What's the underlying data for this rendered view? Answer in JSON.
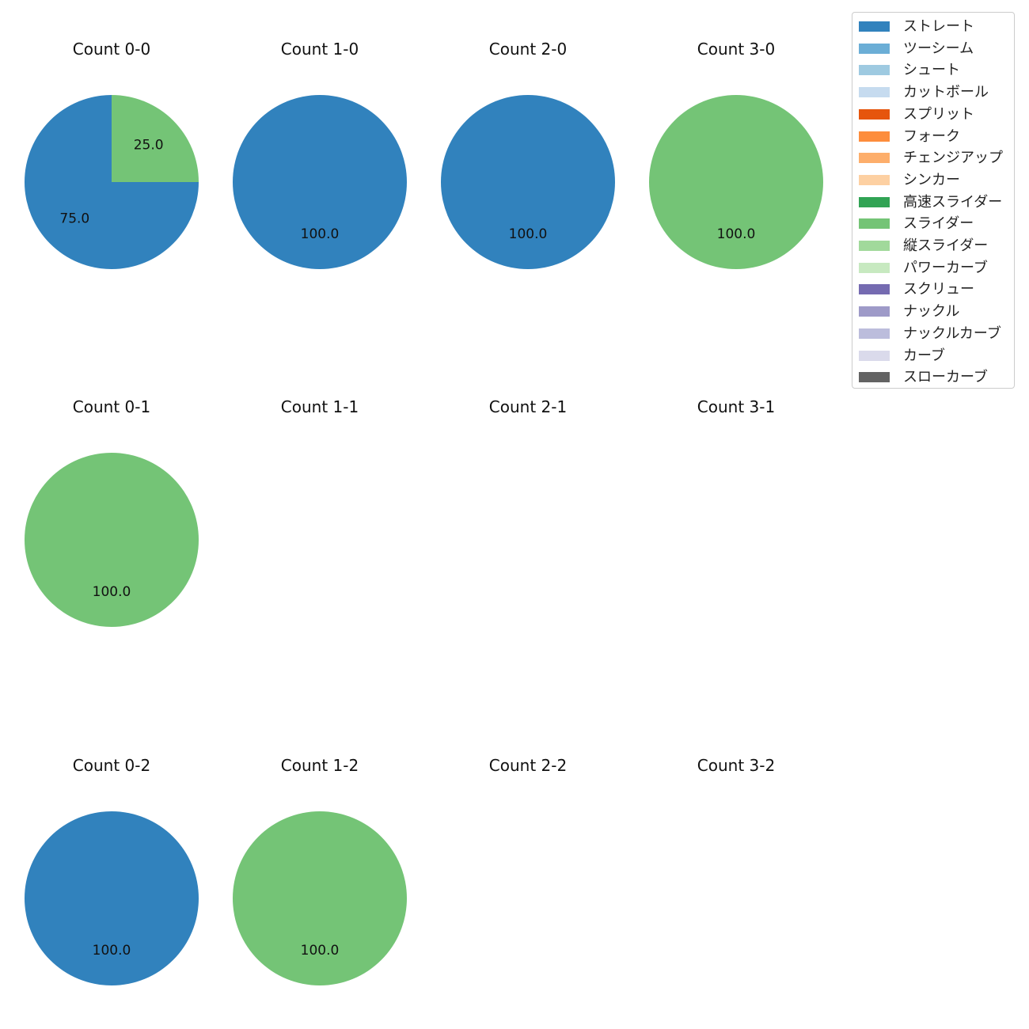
{
  "chart_data": {
    "type": "pie",
    "layout": "grid of 3 rows by 4 columns",
    "charts": [
      {
        "title": "Count 0-0",
        "slices": [
          {
            "label": "ストレート",
            "value": 75.0
          },
          {
            "label": "スライダー",
            "value": 25.0
          }
        ]
      },
      {
        "title": "Count 1-0",
        "slices": [
          {
            "label": "ストレート",
            "value": 100.0
          }
        ]
      },
      {
        "title": "Count 2-0",
        "slices": [
          {
            "label": "ストレート",
            "value": 100.0
          }
        ]
      },
      {
        "title": "Count 3-0",
        "slices": [
          {
            "label": "スライダー",
            "value": 100.0
          }
        ]
      },
      {
        "title": "Count 0-1",
        "slices": [
          {
            "label": "スライダー",
            "value": 100.0
          }
        ]
      },
      {
        "title": "Count 1-1",
        "slices": []
      },
      {
        "title": "Count 2-1",
        "slices": []
      },
      {
        "title": "Count 3-1",
        "slices": []
      },
      {
        "title": "Count 0-2",
        "slices": [
          {
            "label": "ストレート",
            "value": 100.0
          }
        ]
      },
      {
        "title": "Count 1-2",
        "slices": [
          {
            "label": "スライダー",
            "value": 100.0
          }
        ]
      },
      {
        "title": "Count 2-2",
        "slices": []
      },
      {
        "title": "Count 3-2",
        "slices": []
      }
    ],
    "legend": {
      "placement": "top-right",
      "entries": [
        {
          "label": "ストレート",
          "color": "#3182bd"
        },
        {
          "label": "ツーシーム",
          "color": "#6baed6"
        },
        {
          "label": "シュート",
          "color": "#9ecae1"
        },
        {
          "label": "カットボール",
          "color": "#c6dbef"
        },
        {
          "label": "スプリット",
          "color": "#e6550d"
        },
        {
          "label": "フォーク",
          "color": "#fd8d3c"
        },
        {
          "label": "チェンジアップ",
          "color": "#fdae6b"
        },
        {
          "label": "シンカー",
          "color": "#fdd0a2"
        },
        {
          "label": "高速スライダー",
          "color": "#31a354"
        },
        {
          "label": "スライダー",
          "color": "#74c476"
        },
        {
          "label": "縦スライダー",
          "color": "#a1d99b"
        },
        {
          "label": "パワーカーブ",
          "color": "#c7e9c0"
        },
        {
          "label": "スクリュー",
          "color": "#756bb1"
        },
        {
          "label": "ナックル",
          "color": "#9e9ac8"
        },
        {
          "label": "ナックルカーブ",
          "color": "#bcbddc"
        },
        {
          "label": "カーブ",
          "color": "#dadaeb"
        },
        {
          "label": "スローカーブ",
          "color": "#636363"
        }
      ]
    }
  }
}
